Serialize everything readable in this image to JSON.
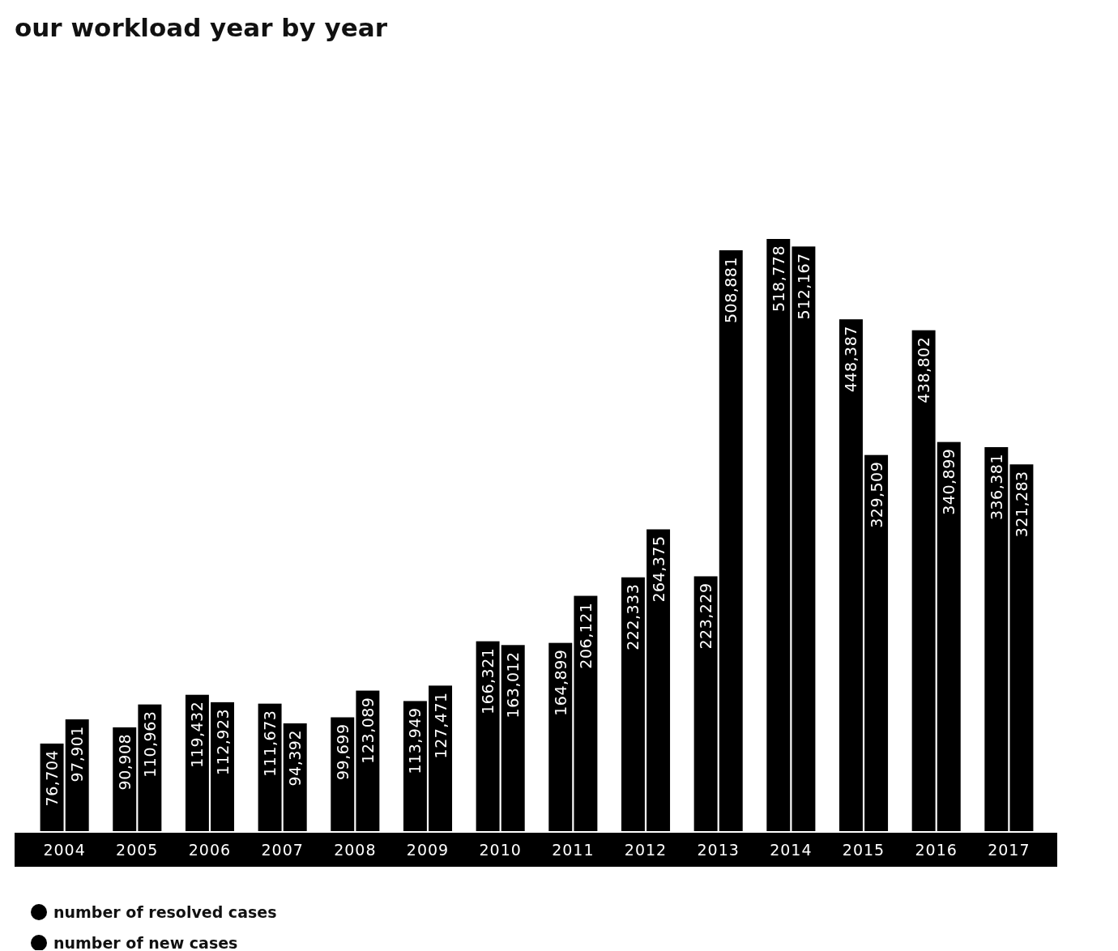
{
  "chart_data": {
    "type": "bar",
    "title": "our workload year by year",
    "categories": [
      "2004",
      "2005",
      "2006",
      "2007",
      "2008",
      "2009",
      "2010",
      "2011",
      "2012",
      "2013",
      "2014",
      "2015",
      "2016",
      "2017"
    ],
    "series": [
      {
        "name": "number of resolved cases",
        "color": "#000000",
        "values": [
          76704,
          90908,
          119432,
          111673,
          99699,
          113949,
          166321,
          164899,
          222333,
          223229,
          518778,
          448387,
          438802,
          336381
        ],
        "value_labels": [
          "76,704",
          "90,908",
          "119,432",
          "111,673",
          "99,699",
          "113,949",
          "166,321",
          "164,899",
          "222,333",
          "223,229",
          "518,778",
          "448,387",
          "438,802",
          "336,381"
        ]
      },
      {
        "name": "number of new cases",
        "color": "#000000",
        "values": [
          97901,
          110963,
          112923,
          94392,
          123089,
          127471,
          163012,
          206121,
          264375,
          508881,
          512167,
          329509,
          340899,
          321283
        ],
        "value_labels": [
          "97,901",
          "110,963",
          "112,923",
          "94,392",
          "123,089",
          "127,471",
          "163,012",
          "206,121",
          "264,375",
          "508,881",
          "512,167",
          "329,509",
          "340,899",
          "321,283"
        ]
      }
    ],
    "legend": "bottom left"
  }
}
